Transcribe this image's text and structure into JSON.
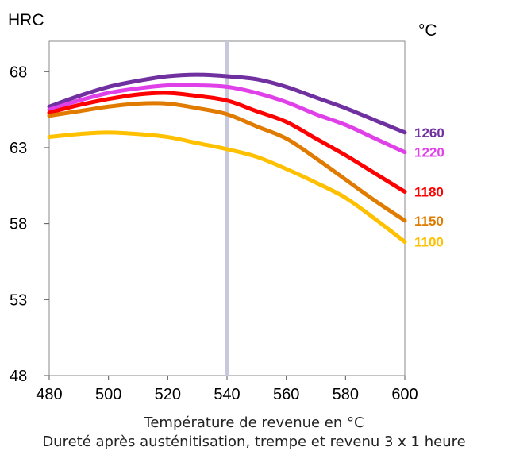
{
  "chart_data": {
    "type": "line",
    "ylabel": "HRC",
    "xunit": "°C",
    "xlabel": "Température de revenue en °C",
    "subtitle": "Dureté après austénitisation, trempe et revenu 3 x 1 heure",
    "xlim": [
      480,
      600
    ],
    "ylim": [
      48,
      70
    ],
    "xticks": [
      480,
      500,
      520,
      540,
      560,
      580,
      600
    ],
    "yticks": [
      48,
      53,
      58,
      63,
      68
    ],
    "ytick_labels": [
      "48",
      "53",
      "58",
      "63",
      "68"
    ],
    "grid": false,
    "reference_line_x": 540,
    "legend": "right, at line ends",
    "series": [
      {
        "name": "1260",
        "color": "#7030A0",
        "x": [
          480,
          490,
          500,
          510,
          520,
          530,
          540,
          550,
          560,
          570,
          580,
          590,
          600
        ],
        "y": [
          65.7,
          66.4,
          67.0,
          67.4,
          67.7,
          67.8,
          67.7,
          67.5,
          67.0,
          66.3,
          65.6,
          64.8,
          64.0
        ]
      },
      {
        "name": "1220",
        "color": "#E040E8",
        "x": [
          480,
          490,
          500,
          510,
          520,
          530,
          540,
          550,
          560,
          570,
          580,
          590,
          600
        ],
        "y": [
          65.5,
          66.1,
          66.6,
          66.9,
          67.1,
          67.1,
          67.0,
          66.6,
          66.0,
          65.2,
          64.5,
          63.6,
          62.7
        ]
      },
      {
        "name": "1180",
        "color": "#FF0000",
        "x": [
          480,
          490,
          500,
          510,
          520,
          530,
          540,
          550,
          560,
          570,
          580,
          590,
          600
        ],
        "y": [
          65.3,
          65.8,
          66.2,
          66.5,
          66.6,
          66.4,
          66.1,
          65.4,
          64.7,
          63.6,
          62.5,
          61.3,
          60.1
        ]
      },
      {
        "name": "1150",
        "color": "#E07B00",
        "x": [
          480,
          490,
          500,
          510,
          520,
          530,
          540,
          550,
          560,
          570,
          580,
          590,
          600
        ],
        "y": [
          65.1,
          65.4,
          65.7,
          65.9,
          65.9,
          65.6,
          65.2,
          64.4,
          63.6,
          62.3,
          60.9,
          59.5,
          58.2
        ]
      },
      {
        "name": "1100",
        "color": "#FFC000",
        "x": [
          480,
          490,
          500,
          510,
          520,
          530,
          540,
          550,
          560,
          570,
          580,
          590,
          600
        ],
        "y": [
          63.7,
          63.9,
          64.0,
          63.9,
          63.7,
          63.3,
          62.9,
          62.4,
          61.6,
          60.7,
          59.7,
          58.3,
          56.8
        ]
      }
    ]
  }
}
